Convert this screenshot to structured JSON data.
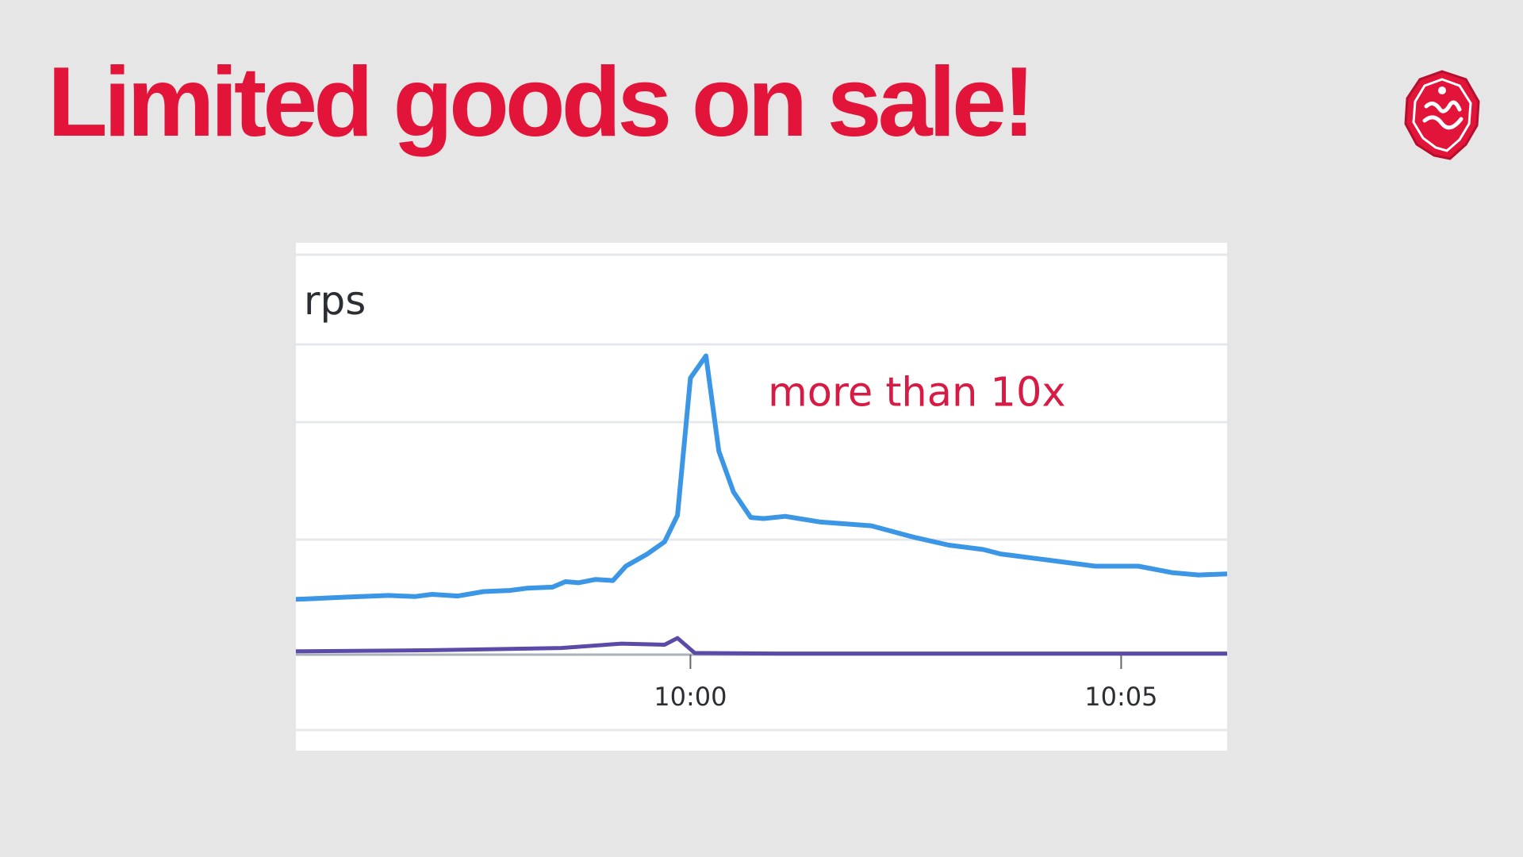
{
  "slide": {
    "title": "Limited goods on sale!",
    "accent_color": "#e2143a",
    "logo_icon": "conference-logo-icon"
  },
  "chart_data": {
    "type": "line",
    "title": "",
    "ylabel": "rps",
    "xlabel": "",
    "x_ticks": [
      "10:00",
      "10:05"
    ],
    "x_tick_minutes": [
      0,
      5
    ],
    "xlim_minutes": [
      -4.58,
      6.23
    ],
    "y_units": "relative (baseline = 1)",
    "ylim": [
      0,
      5.58
    ],
    "grid": true,
    "legend": "none",
    "annotation": {
      "text": "more than 10x",
      "x_minutes": 0.9,
      "y": 4.5,
      "color": "#d81b45"
    },
    "series": [
      {
        "color": "#3b96e6",
        "points": [
          [
            -4.58,
            1.0
          ],
          [
            -4.0,
            1.04
          ],
          [
            -3.5,
            1.07
          ],
          [
            -3.2,
            1.05
          ],
          [
            -3.0,
            1.09
          ],
          [
            -2.7,
            1.06
          ],
          [
            -2.4,
            1.14
          ],
          [
            -2.1,
            1.16
          ],
          [
            -1.9,
            1.2
          ],
          [
            -1.6,
            1.22
          ],
          [
            -1.45,
            1.32
          ],
          [
            -1.3,
            1.3
          ],
          [
            -1.1,
            1.36
          ],
          [
            -0.9,
            1.34
          ],
          [
            -0.75,
            1.6
          ],
          [
            -0.5,
            1.82
          ],
          [
            -0.3,
            2.04
          ],
          [
            -0.15,
            2.52
          ],
          [
            0.0,
            5.0
          ],
          [
            0.18,
            5.4
          ],
          [
            0.33,
            3.68
          ],
          [
            0.5,
            2.94
          ],
          [
            0.7,
            2.48
          ],
          [
            0.85,
            2.46
          ],
          [
            1.1,
            2.5
          ],
          [
            1.5,
            2.4
          ],
          [
            2.1,
            2.33
          ],
          [
            2.6,
            2.12
          ],
          [
            3.0,
            1.98
          ],
          [
            3.4,
            1.9
          ],
          [
            3.6,
            1.82
          ],
          [
            4.0,
            1.74
          ],
          [
            4.3,
            1.68
          ],
          [
            4.7,
            1.6
          ],
          [
            5.2,
            1.6
          ],
          [
            5.6,
            1.48
          ],
          [
            5.9,
            1.44
          ],
          [
            6.23,
            1.46
          ]
        ]
      },
      {
        "color": "#5b4aa8",
        "points": [
          [
            -4.58,
            0.06
          ],
          [
            -3.0,
            0.08
          ],
          [
            -1.5,
            0.12
          ],
          [
            -0.8,
            0.2
          ],
          [
            -0.3,
            0.18
          ],
          [
            -0.15,
            0.3
          ],
          [
            0.05,
            0.03
          ],
          [
            1.0,
            0.02
          ],
          [
            3.0,
            0.02
          ],
          [
            6.23,
            0.02
          ]
        ]
      }
    ]
  }
}
